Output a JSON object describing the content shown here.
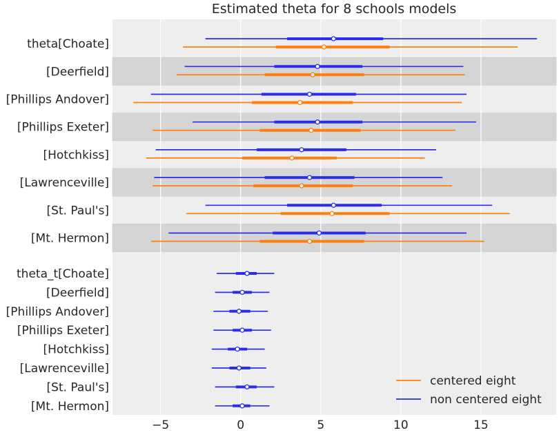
{
  "chart_data": {
    "type": "forest",
    "title": "Estimated theta for 8 schools models",
    "xlabel": "",
    "ylabel": "",
    "xlim": [
      -8,
      19.7
    ],
    "xticks": [
      -5,
      0,
      5,
      10,
      15
    ],
    "xtick_labels": [
      "−5",
      "0",
      "5",
      "10",
      "15"
    ],
    "grid": true,
    "legend_position": "bottom-right",
    "series": [
      {
        "key": "centered",
        "name": "centered eight",
        "color": "#ff7f0e"
      },
      {
        "key": "noncentered",
        "name": "non centered eight",
        "color": "#2a2eec"
      }
    ],
    "groups": [
      {
        "rows": [
          {
            "label": "theta[Choate]",
            "noncentered": {
              "mean": 5.8,
              "q": [
                -2.2,
                2.9,
                8.9,
                18.5
              ]
            },
            "centered": {
              "mean": 5.2,
              "q": [
                -3.6,
                2.2,
                9.3,
                17.3
              ]
            }
          },
          {
            "label": "[Deerfield]",
            "noncentered": {
              "mean": 4.8,
              "q": [
                -3.5,
                2.1,
                7.6,
                13.9
              ]
            },
            "centered": {
              "mean": 4.5,
              "q": [
                -4.0,
                1.5,
                7.7,
                14.0
              ]
            }
          },
          {
            "label": "[Phillips Andover]",
            "noncentered": {
              "mean": 4.3,
              "q": [
                -5.6,
                1.3,
                7.2,
                14.1
              ]
            },
            "centered": {
              "mean": 3.7,
              "q": [
                -6.7,
                0.7,
                7.0,
                13.8
              ]
            }
          },
          {
            "label": "[Phillips Exeter]",
            "noncentered": {
              "mean": 4.8,
              "q": [
                -3.0,
                2.1,
                7.6,
                14.7
              ]
            },
            "centered": {
              "mean": 4.4,
              "q": [
                -5.5,
                1.2,
                7.5,
                13.4
              ]
            }
          },
          {
            "label": "[Hotchkiss]",
            "noncentered": {
              "mean": 3.8,
              "q": [
                -5.3,
                1.0,
                6.6,
                12.2
              ]
            },
            "centered": {
              "mean": 3.2,
              "q": [
                -5.9,
                0.1,
                6.0,
                11.5
              ]
            }
          },
          {
            "label": "[Lawrenceville]",
            "noncentered": {
              "mean": 4.3,
              "q": [
                -5.4,
                1.5,
                7.1,
                12.6
              ]
            },
            "centered": {
              "mean": 3.8,
              "q": [
                -5.5,
                0.8,
                7.0,
                13.2
              ]
            }
          },
          {
            "label": "[St. Paul's]",
            "noncentered": {
              "mean": 5.8,
              "q": [
                -2.2,
                2.9,
                8.8,
                15.7
              ]
            },
            "centered": {
              "mean": 5.7,
              "q": [
                -3.4,
                2.5,
                9.3,
                16.8
              ]
            }
          },
          {
            "label": "[Mt. Hermon]",
            "noncentered": {
              "mean": 4.9,
              "q": [
                -4.5,
                2.0,
                7.8,
                14.1
              ]
            },
            "centered": {
              "mean": 4.3,
              "q": [
                -5.6,
                1.2,
                7.7,
                15.2
              ]
            }
          }
        ]
      },
      {
        "rows": [
          {
            "label": "theta_t[Choate]",
            "noncentered": {
              "mean": 0.4,
              "q": [
                -1.5,
                -0.3,
                1.0,
                2.1
              ]
            }
          },
          {
            "label": "[Deerfield]",
            "noncentered": {
              "mean": 0.1,
              "q": [
                -1.6,
                -0.5,
                0.7,
                1.8
              ]
            }
          },
          {
            "label": "[Phillips Andover]",
            "noncentered": {
              "mean": -0.1,
              "q": [
                -1.7,
                -0.7,
                0.6,
                1.7
              ]
            }
          },
          {
            "label": "[Phillips Exeter]",
            "noncentered": {
              "mean": 0.1,
              "q": [
                -1.7,
                -0.5,
                0.7,
                1.9
              ]
            }
          },
          {
            "label": "[Hotchkiss]",
            "noncentered": {
              "mean": -0.2,
              "q": [
                -1.8,
                -0.8,
                0.4,
                1.5
              ]
            }
          },
          {
            "label": "[Lawrenceville]",
            "noncentered": {
              "mean": -0.1,
              "q": [
                -1.8,
                -0.7,
                0.6,
                1.6
              ]
            }
          },
          {
            "label": "[St. Paul's]",
            "noncentered": {
              "mean": 0.4,
              "q": [
                -1.6,
                -0.3,
                1.0,
                2.1
              ]
            }
          },
          {
            "label": "[Mt. Hermon]",
            "noncentered": {
              "mean": 0.1,
              "q": [
                -1.6,
                -0.5,
                0.6,
                1.8
              ]
            }
          }
        ]
      }
    ]
  }
}
